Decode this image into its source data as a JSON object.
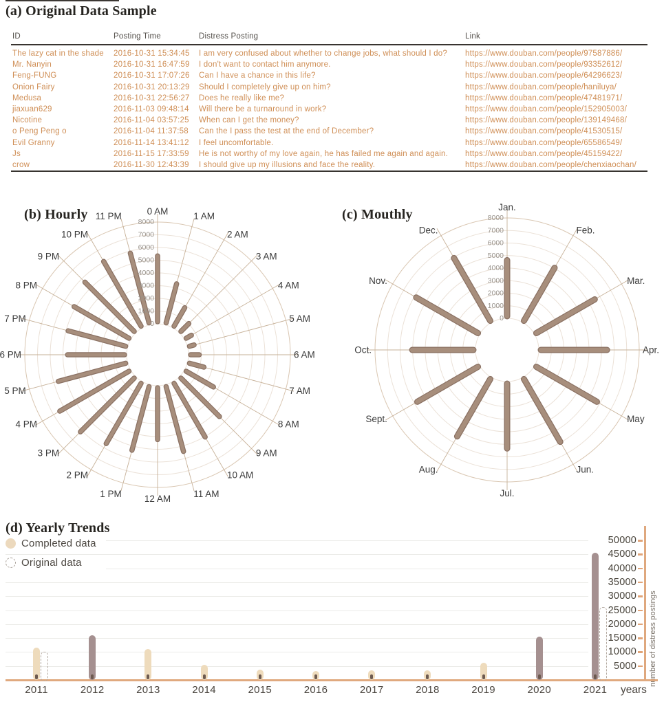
{
  "colors": {
    "table_text": "#cf8e55",
    "header_text": "#55514c",
    "polar_bar": "#a78e7c",
    "polar_bar_edge": "#8a7163",
    "ring_line": "#ebe1d7",
    "spoke_line": "#c6b097",
    "bar_light": "#eedbbc",
    "bar_dark": "#a59090",
    "axis_orange": "#dfa87e",
    "gridline": "#ebebe8",
    "dashed_outline": "#b2a89f",
    "base_dot": "#6d5a50"
  },
  "chart_data": [
    {
      "id": "sample_table",
      "type": "table",
      "title": "(a) Original Data Sample",
      "columns": [
        "ID",
        "Posting Time",
        "Distress Posting",
        "Link"
      ],
      "rows": [
        [
          "The lazy cat in the shade",
          "2016-10-31 15:34:45",
          "I am very confused about whether to change jobs, what should I do?",
          "https://www.douban.com/people/97587886/"
        ],
        [
          "Mr. Nanyin",
          "2016-10-31 16:47:59",
          "I don't want to contact him anymore.",
          "https://www.douban.com/people/93352612/"
        ],
        [
          "Feng-FUNG",
          "2016-10-31 17:07:26",
          "Can I have a chance in this life?",
          "https://www.douban.com/people/64296623/"
        ],
        [
          "Onion Fairy",
          "2016-10-31 20:13:29",
          "Should I completely give up on him?",
          "https://www.douban.com/people/haniluya/"
        ],
        [
          "Medusa",
          "2016-10-31 22:56:27",
          "Does he really like me?",
          "https://www.douban.com/people/47481971/"
        ],
        [
          "jiaxuan629",
          "2016-11-03 09:48:14",
          "Will there be a turnaround in work?",
          "https://www.douban.com/people/152905003/"
        ],
        [
          "Nicotine",
          "2016-11-04 03:57:25",
          "When can I get the money?",
          "https://www.douban.com/people/139149468/"
        ],
        [
          "o Peng Peng o",
          "2016-11-04 11:37:58",
          "Can the I pass the test at the end of December?",
          "https://www.douban.com/people/41530515/"
        ],
        [
          "Evil Granny",
          "2016-11-14 13:41:12",
          "I feel uncomfortable.",
          "https://www.douban.com/people/65586549/"
        ],
        [
          "Js",
          "2016-11-15 17:33:59",
          "He is not worthy of my love again, he has failed me again and again.",
          "https://www.douban.com/people/45159422/"
        ],
        [
          "crow",
          "2016-11-30 12:43:39",
          "I should give up my illusions and face the reality.",
          "https://www.douban.com/people/chenxiaochan/"
        ]
      ]
    },
    {
      "id": "hourly",
      "type": "bar",
      "layout": "polar",
      "title": "(b) Hourly",
      "categories": [
        "0 AM",
        "1 AM",
        "2 AM",
        "3 AM",
        "4 AM",
        "5 AM",
        "6 AM",
        "7 AM",
        "8 AM",
        "9 AM",
        "10 AM",
        "11 AM",
        "12 AM",
        "1 PM",
        "2 PM",
        "3 PM",
        "4 PM",
        "5 PM",
        "6 PM",
        "7 PM",
        "8 PM",
        "9 PM",
        "10 PM",
        "11 PM"
      ],
      "values": [
        5500,
        3500,
        2000,
        1200,
        800,
        700,
        1000,
        1500,
        2800,
        4600,
        5200,
        5600,
        4400,
        5500,
        5800,
        6300,
        6600,
        5800,
        4800,
        5000,
        5300,
        5800,
        6200,
        6000
      ],
      "rlim": [
        0,
        8000
      ],
      "rticks": [
        0,
        1000,
        2000,
        3000,
        4000,
        5000,
        6000,
        7000,
        8000
      ],
      "grid": true
    },
    {
      "id": "monthly",
      "type": "bar",
      "layout": "polar",
      "title": "(c) Mouthly",
      "categories": [
        "Jan.",
        "Feb.",
        "Mar.",
        "Apr.",
        "May",
        "Jun.",
        "Jul.",
        "Aug.",
        "Sept.",
        "Oct.",
        "Nov.",
        "Dec."
      ],
      "values": [
        4800,
        5200,
        5700,
        5600,
        5900,
        6100,
        5500,
        5600,
        5900,
        5200,
        6000,
        6100
      ],
      "rlim": [
        0,
        8000
      ],
      "rticks": [
        0,
        1000,
        2000,
        3000,
        4000,
        5000,
        6000,
        7000,
        8000
      ],
      "grid": true
    },
    {
      "id": "yearly",
      "type": "bar",
      "title": "(d) Yearly Trends",
      "categories": [
        "2011",
        "2012",
        "2013",
        "2014",
        "2015",
        "2016",
        "2017",
        "2018",
        "2019",
        "2020",
        "2021"
      ],
      "series": [
        {
          "name": "Completed data",
          "style": "filled",
          "values": [
            11500,
            16000,
            11000,
            5500,
            3700,
            3200,
            3500,
            3400,
            6200,
            15500,
            45500
          ]
        },
        {
          "name": "Original data",
          "style": "dashed",
          "values": [
            10000,
            null,
            null,
            null,
            null,
            null,
            null,
            null,
            null,
            null,
            26000
          ]
        }
      ],
      "emphasized_categories": [
        "2012",
        "2020",
        "2021"
      ],
      "ylim": [
        0,
        50000
      ],
      "yticks": [
        5000,
        10000,
        15000,
        20000,
        25000,
        30000,
        35000,
        40000,
        45000,
        50000
      ],
      "ylabel": "number of distress postings",
      "xlabel": "years",
      "grid": true,
      "legend_position": "top-left",
      "y_axis_position": "right"
    }
  ]
}
